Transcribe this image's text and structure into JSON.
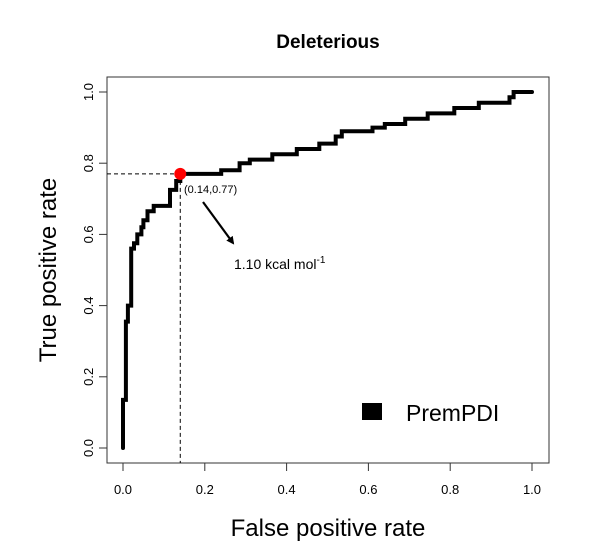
{
  "chart_data": {
    "type": "line",
    "title": "Deleterious",
    "xlabel": "False positive rate",
    "ylabel": "True positive rate",
    "xlim": [
      0,
      1
    ],
    "ylim": [
      0,
      1
    ],
    "grid": false,
    "xticks": [
      0.0,
      0.2,
      0.4,
      0.6,
      0.8,
      1.0
    ],
    "xtick_labels": [
      "0.0",
      "0.2",
      "0.4",
      "0.6",
      "0.8",
      "1.0"
    ],
    "yticks": [
      0.0,
      0.2,
      0.4,
      0.6,
      0.8,
      1.0
    ],
    "ytick_labels": [
      "0.0",
      "0.2",
      "0.4",
      "0.6",
      "0.8",
      "1.0"
    ],
    "legend": {
      "position": "bottom-right",
      "entries": [
        {
          "label": "PremPDI",
          "color": "#000000",
          "marker": "square"
        }
      ]
    },
    "series": [
      {
        "name": "PremPDI",
        "color": "#000000",
        "x": [
          0,
          0,
          0.007,
          0.007,
          0.012,
          0.012,
          0.02,
          0.02,
          0.027,
          0.027,
          0.035,
          0.035,
          0.045,
          0.045,
          0.05,
          0.05,
          0.06,
          0.06,
          0.075,
          0.075,
          0.115,
          0.115,
          0.13,
          0.13,
          0.14,
          0.14,
          0.24,
          0.24,
          0.285,
          0.285,
          0.31,
          0.31,
          0.365,
          0.365,
          0.425,
          0.425,
          0.48,
          0.48,
          0.52,
          0.52,
          0.535,
          0.535,
          0.61,
          0.61,
          0.64,
          0.64,
          0.69,
          0.69,
          0.745,
          0.745,
          0.81,
          0.81,
          0.87,
          0.87,
          0.945,
          0.945,
          0.955,
          0.955,
          1.0
        ],
        "y": [
          0,
          0.135,
          0.135,
          0.355,
          0.355,
          0.4,
          0.4,
          0.56,
          0.56,
          0.575,
          0.575,
          0.6,
          0.6,
          0.62,
          0.62,
          0.64,
          0.64,
          0.665,
          0.665,
          0.68,
          0.68,
          0.725,
          0.725,
          0.75,
          0.75,
          0.77,
          0.77,
          0.78,
          0.78,
          0.8,
          0.8,
          0.81,
          0.81,
          0.825,
          0.825,
          0.84,
          0.84,
          0.855,
          0.855,
          0.875,
          0.875,
          0.89,
          0.89,
          0.9,
          0.9,
          0.91,
          0.91,
          0.925,
          0.925,
          0.94,
          0.94,
          0.955,
          0.955,
          0.97,
          0.97,
          0.985,
          0.985,
          1.0,
          1.0
        ]
      }
    ],
    "annotations": [
      {
        "type": "highlight-point",
        "x": 0.14,
        "y": 0.77,
        "color": "#ff0000",
        "label": "(0.14,0.77)",
        "dashed_guides": true
      },
      {
        "type": "arrow-label",
        "text_main": "1.10 kcal mol",
        "text_sup": "-1"
      }
    ]
  }
}
